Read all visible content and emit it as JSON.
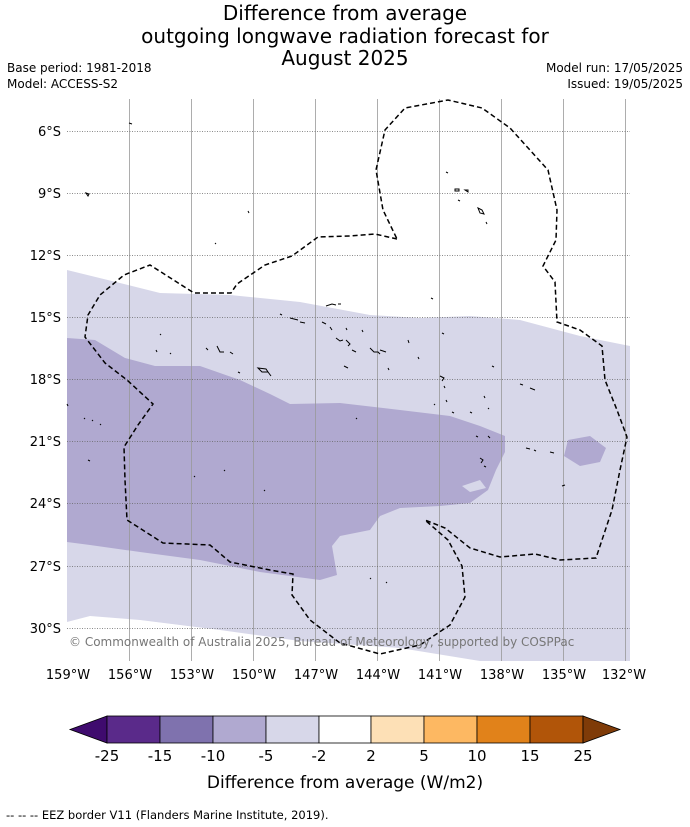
{
  "title": {
    "line1": "Difference from average",
    "line2": "outgoing longwave radiation forecast for",
    "line3": "August 2025"
  },
  "meta": {
    "base_period": "Base period: 1981-2018",
    "model": "Model: ACCESS-S2",
    "model_run": "Model run: 17/05/2025",
    "issued": "Issued: 19/05/2025"
  },
  "map": {
    "lat_labels": [
      "6°S",
      "9°S",
      "12°S",
      "15°S",
      "18°S",
      "21°S",
      "24°S",
      "27°S",
      "30°S"
    ],
    "lon_labels": [
      "159°W",
      "156°W",
      "153°W",
      "150°W",
      "147°W",
      "144°W",
      "141°W",
      "138°W",
      "135°W",
      "132°W"
    ],
    "copyright": "© Commonwealth of Australia 2025, Bureau of Meteorology, supported by COSPPac"
  },
  "colorbar": {
    "ticks": [
      "-25",
      "-15",
      "-10",
      "-5",
      "-2",
      "2",
      "5",
      "10",
      "15",
      "25"
    ],
    "colors": [
      "#3f0b6e",
      "#5a2a8a",
      "#7f72ae",
      "#b0a9d0",
      "#d7d7e9",
      "#ffffff",
      "#fde0b6",
      "#fdb862",
      "#e1821a",
      "#b15509",
      "#7f3b08"
    ],
    "label": "Difference from average (W/m2)"
  },
  "legend": {
    "eez": "--  --  -- EEZ border V11 (Flanders Marine Institute, 2019)."
  }
}
